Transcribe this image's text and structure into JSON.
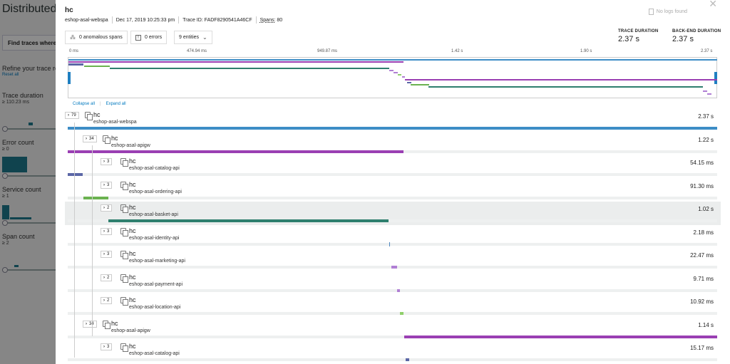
{
  "background": {
    "title": "Distributed tr",
    "find_button": "Find traces where sp",
    "refine_label": "Refine your trace re",
    "reset_link": "Reset all",
    "filters": [
      {
        "label": "Trace duration",
        "value": "≥ 110.23 ms"
      },
      {
        "label": "Error count",
        "value": "≥ 0"
      },
      {
        "label": "Service count",
        "value": "≥ 1"
      },
      {
        "label": "Span count",
        "value": "≥ 2"
      }
    ]
  },
  "trace": {
    "title": "hc",
    "service": "eshop-asal-webspa",
    "date": "Dec 17, 2019 10:25:33 pm",
    "trace_id": "Trace ID: FADF8290541A46CF",
    "spans_label": "Spans:",
    "spans_count": "80",
    "no_logs": "No logs found",
    "pills": {
      "anomalous": "0 anomalous spans",
      "errors": "0 errors",
      "entities": "9 entities"
    },
    "trace_duration_label": "TRACE DURATION",
    "trace_duration_value": "2.37 s",
    "backend_duration_label": "BACK-END DURATION",
    "backend_duration_value": "2.37 s",
    "axis_ticks": [
      "0 ms",
      "474.94 ms",
      "949.87 ms",
      "1.42 s",
      "1.90 s",
      "2.37 s"
    ],
    "collapse_all": "Collapse all",
    "expand_all": "Expand all"
  },
  "colors": {
    "blue": "#3d8dc6",
    "purple": "#9a3fb3",
    "slate": "#5b67a6",
    "green": "#6bb250",
    "teal": "#2e7f6e",
    "lilac": "#b07fd4",
    "light_green": "#8fcf6a",
    "steel_blue": "#4d86c0"
  },
  "spans": [
    {
      "count": "79",
      "name": "hc",
      "service": "eshop-asal-webspa",
      "duration": "2.37 s",
      "start_pct": 0,
      "width_pct": 100,
      "color": "#3d8dc6"
    },
    {
      "count": "34",
      "name": "hc",
      "service": "eshop-asal-apigw",
      "duration": "1.22 s",
      "start_pct": 0,
      "width_pct": 51.7,
      "color": "#9a3fb3"
    },
    {
      "count": "3",
      "name": "hc",
      "service": "eshop-asal-catalog-api",
      "duration": "54.15 ms",
      "start_pct": 0,
      "width_pct": 2.3,
      "color": "#5b67a6"
    },
    {
      "count": "3",
      "name": "hc",
      "service": "eshop-asal-ordering-api",
      "duration": "91.30 ms",
      "start_pct": 2.4,
      "width_pct": 3.9,
      "color": "#6bb250"
    },
    {
      "count": "2",
      "name": "hc",
      "service": "eshop-asal-basket-api",
      "duration": "1.02 s",
      "start_pct": 6.3,
      "width_pct": 43.1,
      "color": "#2e7f6e"
    },
    {
      "count": "3",
      "name": "hc",
      "service": "eshop-asal-identity-api",
      "duration": "2.18 ms",
      "start_pct": 49.5,
      "width_pct": 0.15,
      "color": "#4d86c0"
    },
    {
      "count": "3",
      "name": "hc",
      "service": "eshop-asal-marketing-api",
      "duration": "22.47 ms",
      "start_pct": 49.8,
      "width_pct": 0.95,
      "color": "#b07fd4"
    },
    {
      "count": "2",
      "name": "hc",
      "service": "eshop-asal-payment-api",
      "duration": "9.71 ms",
      "start_pct": 50.7,
      "width_pct": 0.4,
      "color": "#b07fd4"
    },
    {
      "count": "2",
      "name": "hc",
      "service": "eshop-asal-location-api",
      "duration": "10.92 ms",
      "start_pct": 51.2,
      "width_pct": 0.45,
      "color": "#8fcf6a"
    },
    {
      "count": "34",
      "name": "hc",
      "service": "eshop-asal-apigw",
      "duration": "1.14 s",
      "start_pct": 51.8,
      "width_pct": 48.2,
      "color": "#9a3fb3"
    },
    {
      "count": "3",
      "name": "hc",
      "service": "eshop-asal-catalog-api",
      "duration": "15.17 ms",
      "start_pct": 52.0,
      "width_pct": 0.6,
      "color": "#5b67a6"
    }
  ]
}
